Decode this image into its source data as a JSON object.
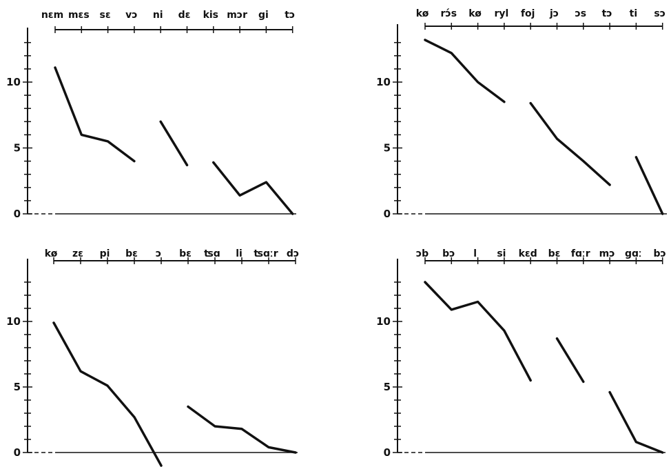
{
  "chart_data": [
    {
      "type": "line",
      "title": "",
      "xlabel": "",
      "ylabel": "",
      "ylim": [
        0,
        14
      ],
      "yticks": [
        0,
        5,
        10
      ],
      "categories": [
        "nɛm",
        "mɛs",
        "sɛ",
        "vɔ",
        "ni",
        "dɛ",
        "kis",
        "mɔr",
        "gi",
        "tɔ"
      ],
      "segments": [
        {
          "x": [
            0,
            1,
            2,
            3
          ],
          "y": [
            11.1,
            6.0,
            5.5,
            4.0
          ]
        },
        {
          "x": [
            4,
            5
          ],
          "y": [
            7.0,
            3.7
          ]
        },
        {
          "x": [
            6,
            7,
            8,
            9
          ],
          "y": [
            3.9,
            1.4,
            2.4,
            0
          ]
        }
      ]
    },
    {
      "type": "line",
      "title": "",
      "xlabel": "",
      "ylabel": "",
      "ylim": [
        0,
        14
      ],
      "yticks": [
        0,
        5,
        10
      ],
      "categories": [
        "kø",
        "rɔ́s",
        "kø",
        "ryl",
        "foj",
        "jɔ",
        "ɔs",
        "tɔ",
        "ti",
        "sɔ"
      ],
      "segments": [
        {
          "x": [
            0,
            1,
            2,
            3
          ],
          "y": [
            13.2,
            12.2,
            10.0,
            8.5
          ]
        },
        {
          "x": [
            4,
            5,
            6,
            7
          ],
          "y": [
            8.4,
            5.7,
            4.0,
            2.2
          ]
        },
        {
          "x": [
            8,
            9
          ],
          "y": [
            4.3,
            0
          ]
        }
      ]
    },
    {
      "type": "line",
      "title": "",
      "xlabel": "",
      "ylabel": "",
      "ylim": [
        0,
        14
      ],
      "yticks": [
        0,
        5,
        10
      ],
      "categories": [
        "kø",
        "zɛ",
        "pi",
        "bɛ",
        "ɔ",
        "bɛ",
        "ʦɑ",
        "li",
        "ʦɑːr",
        "dɔ"
      ],
      "segments": [
        {
          "x": [
            0,
            1,
            2,
            3,
            4
          ],
          "y": [
            9.9,
            6.2,
            5.1,
            2.7,
            -1.0
          ]
        },
        {
          "x": [
            5,
            6,
            7,
            8,
            9
          ],
          "y": [
            3.5,
            2.0,
            1.8,
            0.4,
            0
          ]
        }
      ]
    },
    {
      "type": "line",
      "title": "",
      "xlabel": "",
      "ylabel": "",
      "ylim": [
        0,
        14
      ],
      "yticks": [
        0,
        5,
        10
      ],
      "categories": [
        "ɔb",
        "bɔ",
        "l",
        "si",
        "kɛd",
        "bɛ",
        "fɑːr",
        "mɔ",
        "gɑː",
        "bɔ"
      ],
      "segments": [
        {
          "x": [
            0,
            1,
            2,
            3,
            4
          ],
          "y": [
            13.0,
            10.9,
            11.5,
            9.3,
            5.5
          ]
        },
        {
          "x": [
            5,
            6
          ],
          "y": [
            8.7,
            5.4
          ]
        },
        {
          "x": [
            7,
            8,
            9
          ],
          "y": [
            4.6,
            0.8,
            0
          ]
        }
      ]
    }
  ]
}
